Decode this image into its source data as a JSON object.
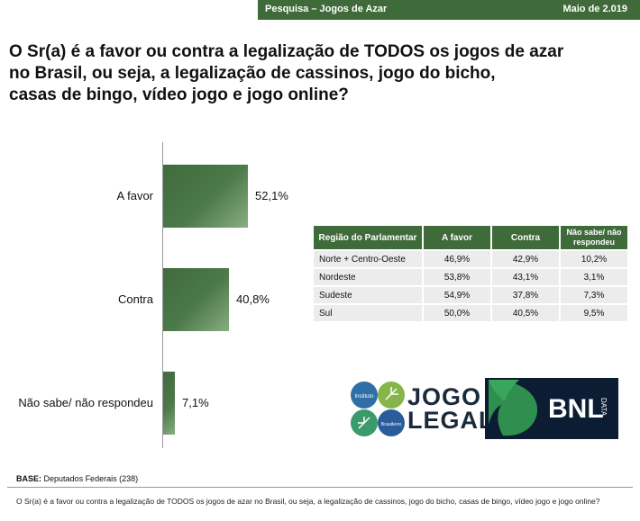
{
  "header": {
    "left": "Pesquisa – Jogos de Azar",
    "right": "Maio de 2.019"
  },
  "question": {
    "line1": "O Sr(a) é a favor ou contra a legalização de TODOS os jogos de azar",
    "line2": "no Brasil, ou seja, a legalização de cassinos, jogo do bicho,",
    "line3": "casas de bingo, vídeo jogo e jogo online?"
  },
  "chart_data": {
    "type": "bar",
    "orientation": "horizontal",
    "categories": [
      "A favor",
      "Contra",
      "Não sabe/ não respondeu"
    ],
    "values": [
      52.1,
      40.8,
      7.1
    ],
    "value_labels": [
      "52,1%",
      "40,8%",
      "7,1%"
    ],
    "xlim": [
      0,
      100
    ],
    "color": "#3f6b3d"
  },
  "table": {
    "headers": [
      "Região do Parlamentar",
      "A favor",
      "Contra",
      "Não sabe/ não respondeu"
    ],
    "rows": [
      [
        "Norte + Centro-Oeste",
        "46,9%",
        "42,9%",
        "10,2%"
      ],
      [
        "Nordeste",
        "53,8%",
        "43,1%",
        "3,1%"
      ],
      [
        "Sudeste",
        "54,9%",
        "37,8%",
        "7,3%"
      ],
      [
        "Sul",
        "50,0%",
        "40,5%",
        "9,5%"
      ]
    ]
  },
  "logos": {
    "jogo_legal": {
      "line1": "JOGO",
      "line2": "LEGAL",
      "circle1": "Instituto",
      "circle2": "Brasileiro"
    },
    "bnl": {
      "text": "BNL",
      "sub": "DATA"
    }
  },
  "base": {
    "label": "BASE:",
    "text": "Deputados Federais (238)"
  },
  "footnote": "O Sr(a) é a favor ou contra a legalização de TODOS os jogos de azar no Brasil, ou seja, a legalização de cassinos, jogo do bicho, casas de bingo, vídeo jogo e jogo online?"
}
